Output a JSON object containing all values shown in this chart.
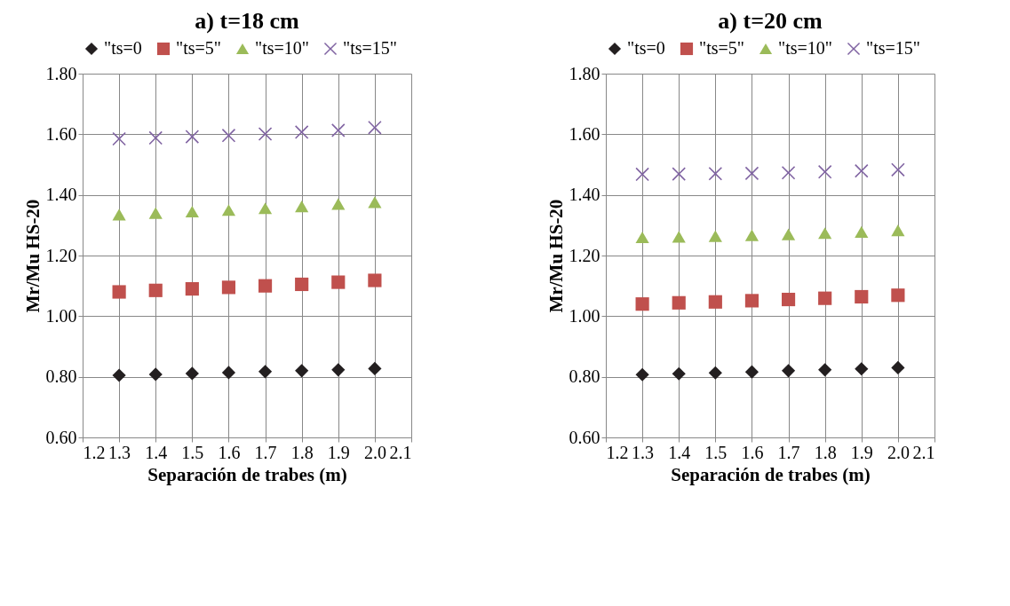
{
  "chart_data": [
    {
      "type": "scatter",
      "title": "a) t=18 cm",
      "xlabel": "Separación de trabes (m)",
      "ylabel": "Mr/Mu HS-20",
      "x": [
        1.3,
        1.4,
        1.5,
        1.6,
        1.7,
        1.8,
        1.9,
        2.0
      ],
      "series": [
        {
          "name": "\"ts=0",
          "color": "#231f20",
          "marker": "diamond",
          "values": [
            0.805,
            0.808,
            0.811,
            0.814,
            0.817,
            0.82,
            0.823,
            0.827
          ]
        },
        {
          "name": "\"ts=5\"",
          "color": "#c0504d",
          "marker": "square",
          "values": [
            1.08,
            1.085,
            1.09,
            1.095,
            1.1,
            1.105,
            1.112,
            1.118
          ]
        },
        {
          "name": "\"ts=10\"",
          "color": "#9bbb59",
          "marker": "triangle",
          "values": [
            1.335,
            1.34,
            1.345,
            1.35,
            1.356,
            1.362,
            1.37,
            1.376
          ]
        },
        {
          "name": "\"ts=15\"",
          "color": "#8064a2",
          "marker": "cross",
          "values": [
            1.585,
            1.588,
            1.592,
            1.596,
            1.601,
            1.607,
            1.613,
            1.622
          ]
        }
      ],
      "xlim": [
        1.2,
        2.1
      ],
      "xticks": [
        1.2,
        1.3,
        1.4,
        1.5,
        1.6,
        1.7,
        1.8,
        1.9,
        {
          "value": 2.0,
          "label": "2.0"
        },
        2.1
      ],
      "ylim": [
        0.6,
        1.8
      ],
      "yticks": [
        {
          "value": 0.6,
          "label": "0.60"
        },
        {
          "value": 0.8,
          "label": "0.80"
        },
        {
          "value": 1.0,
          "label": "1.00"
        },
        {
          "value": 1.2,
          "label": "1.20"
        },
        {
          "value": 1.4,
          "label": "1.40"
        },
        {
          "value": 1.6,
          "label": "1.60"
        },
        {
          "value": 1.8,
          "label": "1.80"
        }
      ],
      "grid": true,
      "legend": "top"
    },
    {
      "type": "scatter",
      "title": "a) t=20 cm",
      "xlabel": "Separación de trabes (m)",
      "ylabel": "Mr/Mu HS-20",
      "x": [
        1.3,
        1.4,
        1.5,
        1.6,
        1.7,
        1.8,
        1.9,
        2.0
      ],
      "series": [
        {
          "name": "\"ts=0",
          "color": "#231f20",
          "marker": "diamond",
          "values": [
            0.807,
            0.81,
            0.813,
            0.816,
            0.82,
            0.823,
            0.826,
            0.83
          ]
        },
        {
          "name": "\"ts=5\"",
          "color": "#c0504d",
          "marker": "square",
          "values": [
            1.04,
            1.044,
            1.047,
            1.051,
            1.055,
            1.059,
            1.064,
            1.069
          ]
        },
        {
          "name": "\"ts=10\"",
          "color": "#9bbb59",
          "marker": "triangle",
          "values": [
            1.26,
            1.262,
            1.264,
            1.267,
            1.27,
            1.274,
            1.278,
            1.283
          ]
        },
        {
          "name": "\"ts=15\"",
          "color": "#8064a2",
          "marker": "cross",
          "values": [
            1.468,
            1.469,
            1.47,
            1.471,
            1.473,
            1.476,
            1.479,
            1.483
          ]
        }
      ],
      "xlim": [
        1.2,
        2.1
      ],
      "xticks": [
        1.2,
        1.3,
        1.4,
        1.5,
        1.6,
        1.7,
        1.8,
        1.9,
        {
          "value": 2.0,
          "label": "2.0"
        },
        2.1
      ],
      "ylim": [
        0.6,
        1.8
      ],
      "yticks": [
        {
          "value": 0.6,
          "label": "0.60"
        },
        {
          "value": 0.8,
          "label": "0.80"
        },
        {
          "value": 1.0,
          "label": "1.00"
        },
        {
          "value": 1.2,
          "label": "1.20"
        },
        {
          "value": 1.4,
          "label": "1.40"
        },
        {
          "value": 1.6,
          "label": "1.60"
        },
        {
          "value": 1.8,
          "label": "1.80"
        }
      ],
      "grid": true,
      "legend": "top"
    }
  ]
}
